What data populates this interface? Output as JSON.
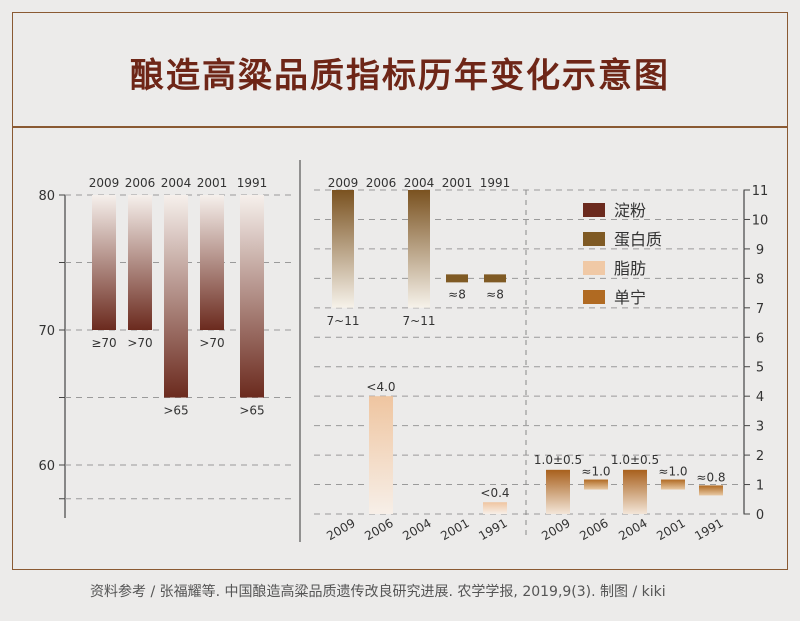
{
  "title": "酿造高粱品质指标历年变化示意图",
  "source": "资料参考 / 张福耀等. 中国酿造高粱品质遗传改良研究进展. 农学学报, 2019,9(3).   制图 / kiki",
  "chart_data": [
    {
      "type": "bar",
      "name_unprinted": true,
      "categories": [
        "2009",
        "2006",
        "2004",
        "2001",
        "1991"
      ],
      "values": [
        70,
        70,
        65,
        70,
        65
      ],
      "value_labels": [
        "≥70",
        ">70",
        ">65",
        ">70",
        ">65"
      ],
      "yticks": [
        "80",
        "70",
        "60"
      ],
      "ylim": [
        57.5,
        80
      ],
      "color": "#6b2a1e",
      "grid": true
    },
    {
      "type": "bar",
      "categories": [
        "2009",
        "2006",
        "2004",
        "2001",
        "1991"
      ],
      "ylim": [
        0,
        11
      ],
      "yticks": [
        "0",
        "1",
        "2",
        "3",
        "4",
        "5",
        "6",
        "7",
        "8",
        "9",
        "10",
        "11"
      ],
      "legend": [
        {
          "name": "淀粉",
          "color": "#6b2a1e"
        },
        {
          "name": "蛋白质",
          "color": "#7f5a24"
        },
        {
          "name": "脂肪",
          "color": "#f0c9a6"
        },
        {
          "name": "单宁",
          "color": "#b06a22"
        }
      ],
      "series": [
        {
          "name": "蛋白质",
          "ranges": [
            [
              7,
              11
            ],
            null,
            [
              7,
              11
            ],
            [
              8,
              8
            ],
            [
              8,
              8
            ]
          ],
          "value_labels": [
            "7~11",
            "",
            "7~11",
            "≈8",
            "≈8"
          ]
        },
        {
          "name": "脂肪",
          "values": [
            null,
            4.0,
            null,
            null,
            0.4
          ],
          "value_labels": [
            "",
            "<4.0",
            "",
            "",
            "<0.4"
          ]
        },
        {
          "name": "单宁",
          "values": [
            1.0,
            1.0,
            1.0,
            1.0,
            0.8
          ],
          "errors": [
            0.5,
            null,
            0.5,
            null,
            null
          ],
          "value_labels": [
            "1.0±0.5",
            "≈1.0",
            "1.0±0.5",
            "≈1.0",
            "≈0.8"
          ]
        }
      ],
      "grid": true,
      "legend_position": "top-right"
    }
  ]
}
